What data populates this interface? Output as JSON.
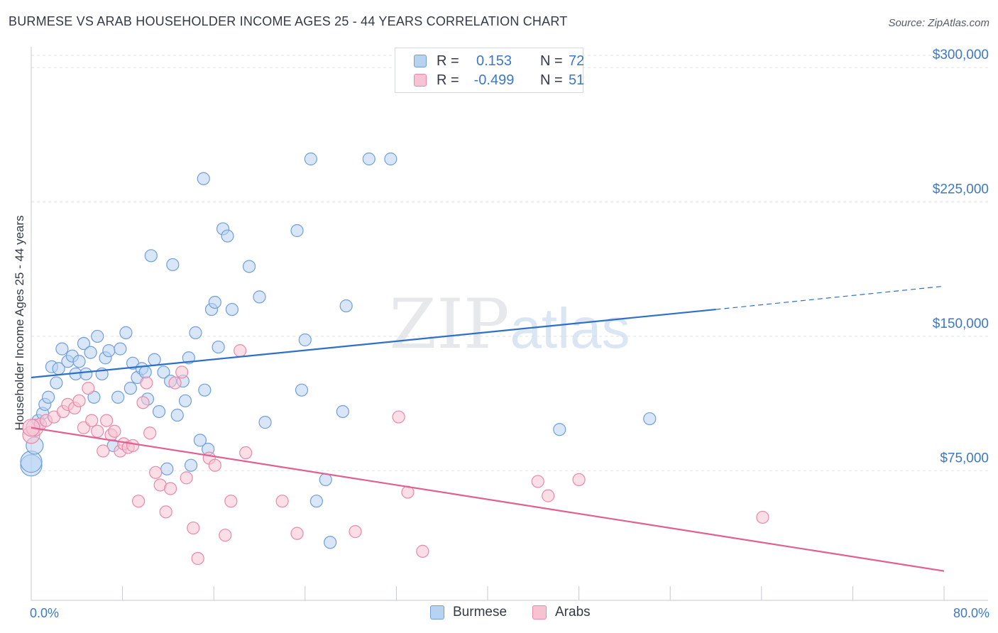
{
  "title": "BURMESE VS ARAB HOUSEHOLDER INCOME AGES 25 - 44 YEARS CORRELATION CHART",
  "source": "Source: ZipAtlas.com",
  "watermark": {
    "zip": "ZIP",
    "atlas": "atlas"
  },
  "legend": {
    "burmese": {
      "r_label": "R =",
      "r_value": "0.153",
      "n_label": "N =",
      "n_value": "72"
    },
    "arabs": {
      "r_label": "R =",
      "r_value": "-0.499",
      "n_label": "N =",
      "n_value": "51"
    }
  },
  "colors": {
    "burmese_fill": "#b8d2f2",
    "burmese_stroke": "#6f9fda",
    "burmese_line": "#2e6fc9",
    "arabs_fill": "#f7c3d2",
    "arabs_stroke": "#e889a8",
    "arabs_line": "#e0608f",
    "tick_text": "#3d78c2",
    "grid": "#dfe2e6"
  },
  "chart_data": {
    "type": "scatter",
    "title": "BURMESE VS ARAB HOUSEHOLDER INCOME AGES 25 - 44 YEARS CORRELATION CHART",
    "xlabel": "",
    "ylabel": "Householder Income Ages 25 - 44 years",
    "xlim": [
      0,
      80
    ],
    "ylim": [
      5000,
      310000
    ],
    "x_tick_labels": [
      "0.0%",
      "80.0%"
    ],
    "y_ticks": [
      75000,
      150000,
      225000,
      300000
    ],
    "y_tick_labels": [
      "$75,000",
      "$150,000",
      "$225,000",
      "$300,000"
    ],
    "legend_position": "top-center",
    "series": [
      {
        "name": "Burmese",
        "r": 0.153,
        "n": 72,
        "trend": {
          "x0": 0,
          "y0": 127000,
          "x1": 60,
          "y1": 165000,
          "dash_to_x": 80,
          "dash_to_y": 178000
        },
        "points": [
          [
            0.0,
            78000
          ],
          [
            0.0,
            80000
          ],
          [
            0.3,
            89000
          ],
          [
            0.6,
            103000
          ],
          [
            1.0,
            107000
          ],
          [
            1.2,
            112000
          ],
          [
            1.5,
            116000
          ],
          [
            1.8,
            133000
          ],
          [
            2.2,
            124000
          ],
          [
            2.4,
            132000
          ],
          [
            2.7,
            143000
          ],
          [
            3.2,
            136000
          ],
          [
            3.6,
            139000
          ],
          [
            3.9,
            129000
          ],
          [
            4.2,
            136000
          ],
          [
            4.6,
            146000
          ],
          [
            4.8,
            129000
          ],
          [
            5.2,
            141000
          ],
          [
            5.5,
            116000
          ],
          [
            5.8,
            150000
          ],
          [
            6.2,
            129000
          ],
          [
            6.5,
            138000
          ],
          [
            6.8,
            142000
          ],
          [
            7.2,
            89000
          ],
          [
            7.6,
            116000
          ],
          [
            7.8,
            143000
          ],
          [
            8.3,
            152000
          ],
          [
            8.7,
            121000
          ],
          [
            8.9,
            135000
          ],
          [
            9.3,
            127000
          ],
          [
            9.7,
            132000
          ],
          [
            10.0,
            130000
          ],
          [
            10.2,
            115000
          ],
          [
            10.5,
            195000
          ],
          [
            10.8,
            137000
          ],
          [
            11.2,
            108000
          ],
          [
            11.6,
            130000
          ],
          [
            11.9,
            76000
          ],
          [
            12.2,
            125000
          ],
          [
            12.4,
            190000
          ],
          [
            12.8,
            106000
          ],
          [
            13.3,
            125000
          ],
          [
            13.5,
            114000
          ],
          [
            13.8,
            138000
          ],
          [
            14.0,
            78000
          ],
          [
            14.4,
            152000
          ],
          [
            14.8,
            92000
          ],
          [
            15.2,
            120000
          ],
          [
            15.1,
            238000
          ],
          [
            15.5,
            87000
          ],
          [
            15.8,
            165000
          ],
          [
            16.1,
            169000
          ],
          [
            16.4,
            144000
          ],
          [
            16.8,
            210000
          ],
          [
            17.2,
            206000
          ],
          [
            17.6,
            165000
          ],
          [
            19.1,
            189000
          ],
          [
            20.0,
            172000
          ],
          [
            20.5,
            102000
          ],
          [
            23.3,
            209000
          ],
          [
            23.7,
            120000
          ],
          [
            24.0,
            148000
          ],
          [
            24.5,
            249000
          ],
          [
            25.0,
            58000
          ],
          [
            25.8,
            70000
          ],
          [
            26.2,
            35000
          ],
          [
            27.3,
            108000
          ],
          [
            27.6,
            167000
          ],
          [
            29.6,
            249000
          ],
          [
            31.5,
            249000
          ],
          [
            46.3,
            98000
          ],
          [
            54.2,
            104000
          ]
        ]
      },
      {
        "name": "Arabs",
        "r": -0.499,
        "n": 51,
        "trend": {
          "x0": 0,
          "y0": 99000,
          "x1": 80,
          "y1": 19000
        },
        "points": [
          [
            0.0,
            95000
          ],
          [
            0.3,
            99000
          ],
          [
            0.8,
            101000
          ],
          [
            1.3,
            103000
          ],
          [
            2.0,
            105000
          ],
          [
            2.8,
            108000
          ],
          [
            3.2,
            112000
          ],
          [
            3.8,
            110000
          ],
          [
            4.2,
            114000
          ],
          [
            4.6,
            99000
          ],
          [
            5.0,
            121000
          ],
          [
            5.3,
            103000
          ],
          [
            5.8,
            97000
          ],
          [
            6.3,
            86000
          ],
          [
            6.6,
            103000
          ],
          [
            7.0,
            95000
          ],
          [
            7.3,
            97000
          ],
          [
            7.8,
            86000
          ],
          [
            8.1,
            90000
          ],
          [
            8.5,
            88000
          ],
          [
            8.9,
            89000
          ],
          [
            9.4,
            58000
          ],
          [
            9.8,
            113000
          ],
          [
            10.1,
            124000
          ],
          [
            10.4,
            96000
          ],
          [
            10.9,
            74000
          ],
          [
            11.3,
            67000
          ],
          [
            11.8,
            52000
          ],
          [
            12.2,
            65000
          ],
          [
            12.6,
            124000
          ],
          [
            13.2,
            130000
          ],
          [
            13.6,
            71000
          ],
          [
            14.2,
            43000
          ],
          [
            14.6,
            26000
          ],
          [
            15.6,
            82000
          ],
          [
            16.1,
            78000
          ],
          [
            17.0,
            39000
          ],
          [
            17.5,
            58000
          ],
          [
            18.3,
            142000
          ],
          [
            18.8,
            85000
          ],
          [
            22.0,
            58000
          ],
          [
            23.3,
            40000
          ],
          [
            28.4,
            41000
          ],
          [
            32.2,
            105000
          ],
          [
            33.0,
            63000
          ],
          [
            34.3,
            30000
          ],
          [
            44.4,
            69000
          ],
          [
            45.3,
            61000
          ],
          [
            48.0,
            70000
          ],
          [
            64.1,
            49000
          ],
          [
            0.0,
            99000
          ]
        ]
      }
    ]
  }
}
